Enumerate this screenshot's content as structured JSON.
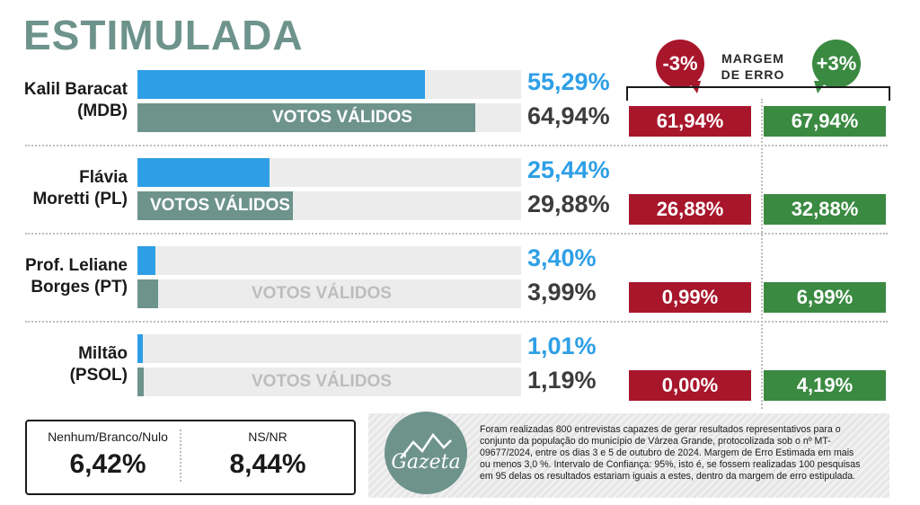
{
  "title": "ESTIMULADA",
  "chart_data": {
    "type": "bar",
    "categories": [
      "Kalil Baracat (MDB)",
      "Flávia Moretti (PL)",
      "Prof. Leliane Borges (PT)",
      "Miltão (PSOL)"
    ],
    "series": [
      {
        "values": [
          55.29,
          25.44,
          3.4,
          1.01
        ]
      },
      {
        "name": "VOTOS VÁLIDOS",
        "values": [
          64.94,
          29.88,
          3.99,
          1.19
        ]
      }
    ],
    "margin_low": [
      61.94,
      26.88,
      0.99,
      0.0
    ],
    "margin_high": [
      67.94,
      32.88,
      6.99,
      4.19
    ],
    "ylim": [
      0,
      100
    ]
  },
  "candidates": [
    {
      "line1": "Kalil Baracat",
      "line2": "(MDB)",
      "intent_label": "55,29%",
      "valid_label": "64,94%",
      "votos_validos": "VOTOS VÁLIDOS",
      "low_label": "61,94%",
      "high_label": "67,94%"
    },
    {
      "line1": "Flávia",
      "line2": "Moretti (PL)",
      "intent_label": "25,44%",
      "valid_label": "29,88%",
      "votos_validos": "VOTOS VÁLIDOS",
      "low_label": "26,88%",
      "high_label": "32,88%"
    },
    {
      "line1": "Prof. Leliane",
      "line2": "Borges (PT)",
      "intent_label": "3,40%",
      "valid_label": "3,99%",
      "votos_validos": "VOTOS VÁLIDOS",
      "low_label": "0,99%",
      "high_label": "6,99%"
    },
    {
      "line1": "Miltão",
      "line2": "(PSOL)",
      "intent_label": "1,01%",
      "valid_label": "1,19%",
      "votos_validos": "VOTOS VÁLIDOS",
      "low_label": "0,00%",
      "high_label": "4,19%"
    }
  ],
  "margin": {
    "title_line1": "MARGEM",
    "title_line2": "DE ERRO",
    "minus": "-3%",
    "plus": "+3%"
  },
  "footer": {
    "nenhum_label": "Nenhum/Branco/Nulo",
    "nenhum_value": "6,42%",
    "nsnr_label": "NS/NR",
    "nsnr_value": "8,44%",
    "logo": "Gazeta",
    "note": "Foram realizadas 800 entrevistas capazes de gerar resultados representativos para o conjunto da população do município de Várzea Grande, protocolizada sob o nº MT-09677/2024, entre os dias 3 e 5 de outubro de 2024. Margem de Erro Estimada em mais ou menos 3,0 %. Intervalo de Confiança: 95%, isto é, se fossem realizadas 100 pesquisas em 95 delas os resultados estariam iguais a estes, dentro da margem de erro estipulada."
  },
  "colors": {
    "intent": "#2e9fe6",
    "valid": "#6d938b",
    "low": "#a8162c",
    "high": "#3b8a42"
  }
}
